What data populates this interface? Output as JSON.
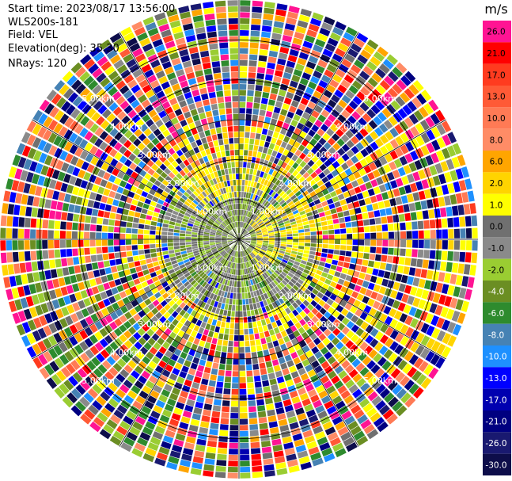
{
  "header": {
    "start_time": "Start time: 2023/08/17 13:56:00",
    "site": "WLS200s-181",
    "field": "Field: VEL",
    "elevation": "Elevation(deg): 35.30",
    "nrays": "NRays: 120"
  },
  "chart_data": {
    "type": "heatmap",
    "projection": "polar-ppi",
    "field": "VEL",
    "units": "m/s",
    "n_rays": 120,
    "n_gates": 40,
    "max_range_km": 6.0,
    "range_ring_labels": [
      "1.00km",
      "2.00km",
      "3.00km",
      "4.00km",
      "5.00km"
    ],
    "range_rings_km": [
      1,
      2,
      3,
      4,
      5
    ],
    "azimuth_spokes_deg": [
      0,
      30,
      60,
      90,
      120,
      150,
      180,
      210,
      240,
      270,
      300,
      330
    ],
    "description_regions": {
      "inner_0_1km": "mostly near-zero and slightly negative (olive/gray), positive 1-2 m/s patch to the east",
      "ring_1_2km": "gray/olive noise with yellow arcs north and east",
      "outer_2_6km": "random noisy velocities across full color range"
    },
    "colorbar": {
      "title": "m/s",
      "ticks": [
        "26.0",
        "21.0",
        "17.0",
        "13.0",
        "10.0",
        "8.0",
        "6.0",
        "2.0",
        "1.0",
        "0.0",
        "-1.0",
        "-2.0",
        "-4.0",
        "-6.0",
        "-8.0",
        "-10.0",
        "-13.0",
        "-17.0",
        "-21.0",
        "-26.0",
        "-30.0"
      ],
      "colors": [
        "#ff1493",
        "#ff0000",
        "#ff3b1f",
        "#ff5a36",
        "#ff7a55",
        "#ff8c66",
        "#ffa500",
        "#ffd400",
        "#ffff00",
        "#707070",
        "#8a8a8a",
        "#9acd32",
        "#6b8e23",
        "#2e8b2e",
        "#4682b4",
        "#1e90ff",
        "#0000ff",
        "#0000b0",
        "#000080",
        "#191970",
        "#0d0d4a"
      ]
    }
  }
}
